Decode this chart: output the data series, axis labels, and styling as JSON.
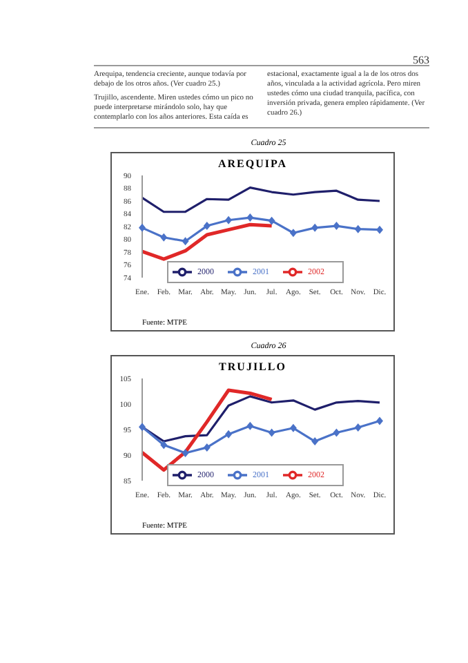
{
  "chart_data": [
    {
      "type": "line",
      "subtitle": "Cuadro 25",
      "title": "AREQUIPA",
      "categories": [
        "Ene.",
        "Feb.",
        "Mar.",
        "Abr.",
        "May.",
        "Jun.",
        "Jul.",
        "Ago.",
        "Set.",
        "Oct.",
        "Nov.",
        "Dic."
      ],
      "series": [
        {
          "name": "2000",
          "color": "#1f1f6b",
          "values": [
            86.5,
            84.3,
            84.3,
            86.3,
            86.2,
            88.1,
            87.4,
            87.0,
            87.4,
            87.6,
            86.2,
            86.0
          ]
        },
        {
          "name": "2001",
          "color": "#4a72c8",
          "marker": "diamond",
          "values": [
            81.8,
            80.3,
            79.7,
            82.1,
            83.0,
            83.4,
            82.9,
            81.0,
            81.8,
            82.1,
            81.6,
            81.5
          ]
        },
        {
          "name": "2002",
          "color": "#e02828",
          "values": [
            78.1,
            76.9,
            78.2,
            80.7,
            81.5,
            82.3,
            82.1,
            null,
            null,
            null,
            null,
            null
          ]
        }
      ],
      "ylim": [
        74,
        90
      ],
      "yticks": [
        74,
        76,
        78,
        80,
        82,
        84,
        86,
        88,
        90
      ],
      "grid": false,
      "legend": "bottom left",
      "marker": "none",
      "line_style": "solid",
      "annotations": [
        "563",
        "Arequipa, tendencia creciente, aunque todavía por debajo de los otros años. (Ver cuadro 25.)",
        "Trujillo, ascendente. Miren ustedes cómo un pico no puede interpretarse mirándolo solo, hay que contemplarlo con los años anteriores. Esta caída es estacional, exactamente igual a la de los otros dos años, vinculada a la actividad agrícola. Pero miren ustedes cómo una ciudad tranquila, pacífica, con inversión privada, genera empleo rápidamente. (Ver cuadro 26.)",
        "Fuente: MTPE"
      ]
    },
    {
      "type": "line",
      "subtitle": "Cuadro 26",
      "title": "TRUJILLO",
      "categories": [
        "Ene.",
        "Feb.",
        "Mar.",
        "Abr.",
        "May.",
        "Jun.",
        "Jul.",
        "Ago.",
        "Set.",
        "Oct.",
        "Nov.",
        "Dic."
      ],
      "series": [
        {
          "name": "2000",
          "color": "#1f1f6b",
          "values": [
            95.5,
            92.7,
            93.7,
            93.9,
            99.7,
            101.5,
            100.3,
            100.7,
            98.9,
            100.3,
            100.6,
            100.3
          ]
        },
        {
          "name": "2001",
          "color": "#4a72c8",
          "marker": "diamond",
          "values": [
            95.5,
            92.0,
            90.4,
            91.5,
            94.1,
            95.7,
            94.4,
            95.3,
            92.7,
            94.4,
            95.4,
            96.7
          ]
        },
        {
          "name": "2002",
          "color": "#e02828",
          "values": [
            90.5,
            87.1,
            90.6,
            96.5,
            102.7,
            102.1,
            100.9,
            null,
            null,
            null,
            null,
            null
          ]
        }
      ],
      "ylim": [
        85,
        105
      ],
      "yticks": [
        85,
        90,
        95,
        100,
        105
      ],
      "grid": false,
      "legend": "bottom left",
      "marker": "none",
      "line_style": "solid",
      "annotations": [
        "Fuente: MTPE"
      ]
    }
  ]
}
